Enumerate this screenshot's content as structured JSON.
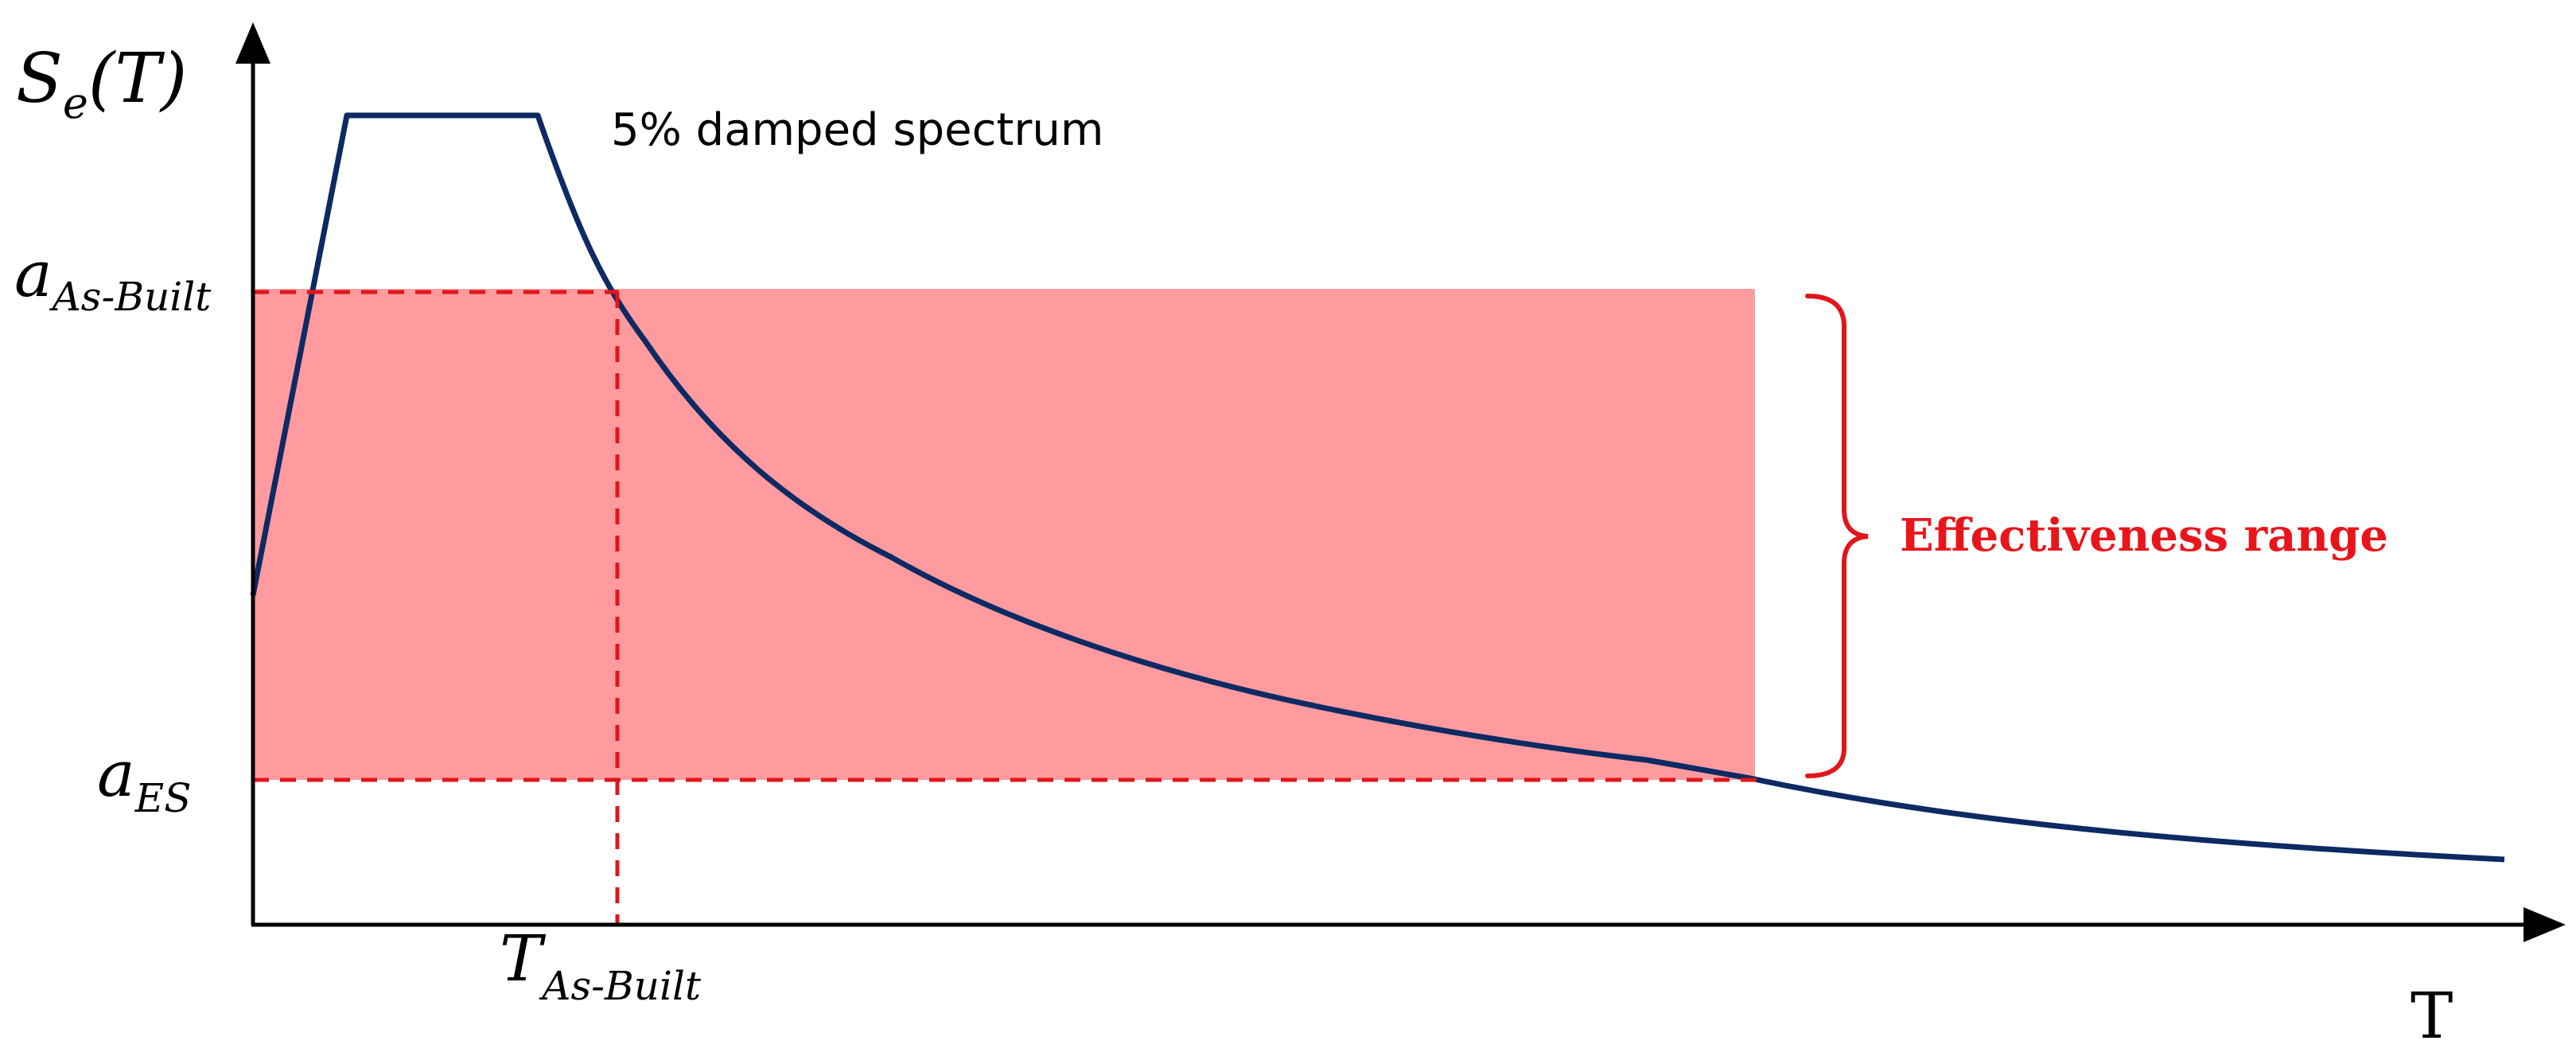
{
  "labels": {
    "y_axis_main": "S",
    "y_axis_sub": "e",
    "y_axis_paren": "(T)",
    "x_axis": "T",
    "spectrum_label": "5% damped spectrum",
    "a_asbuilt_main": "a",
    "a_asbuilt_sub": "As-Built",
    "a_es_main": "a",
    "a_es_sub": "ES",
    "t_asbuilt_main": "T",
    "t_asbuilt_sub": "As-Built",
    "range_label": "Effectiveness range"
  },
  "colors": {
    "axis": "#000000",
    "spectrum": "#0d2a63",
    "dashed": "#e0161b",
    "band": "#ff7f84",
    "bracket": "#e0161b",
    "range_text": "#e8161b"
  }
}
